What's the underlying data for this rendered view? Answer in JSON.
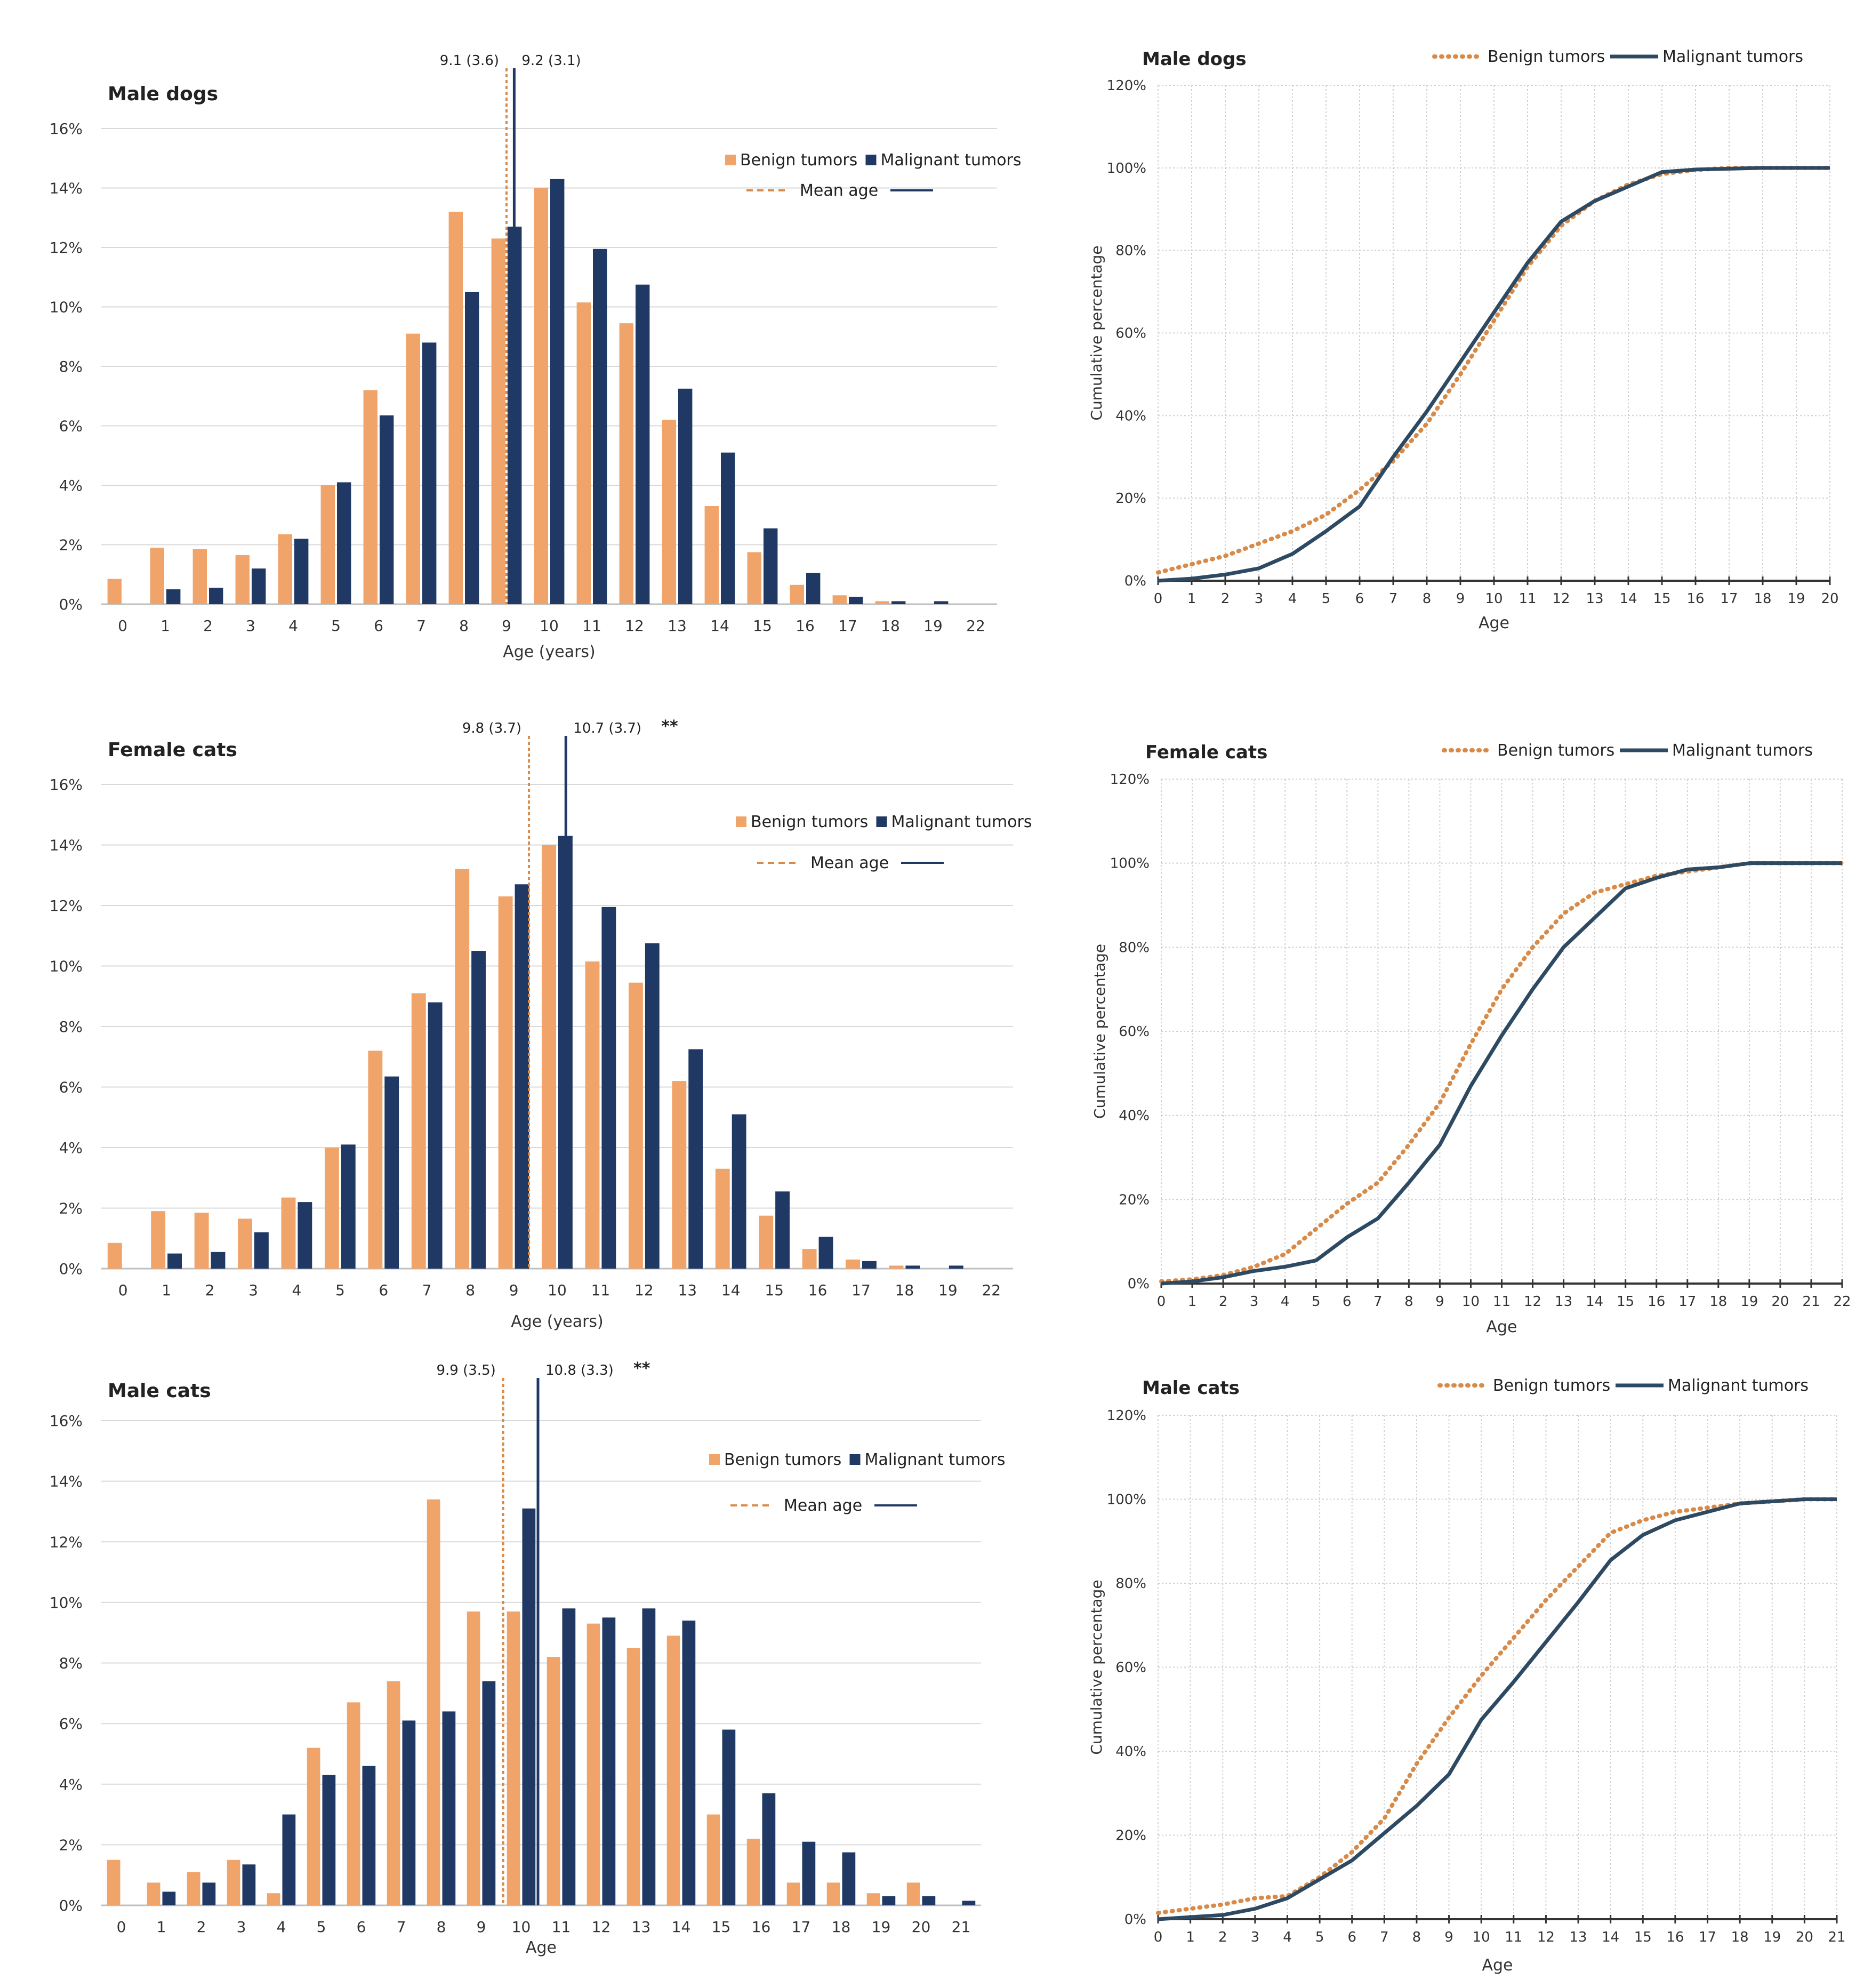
{
  "colors": {
    "benign": "#f0a46a",
    "malignant": "#1f3864",
    "benign_line": "#d88a48",
    "malignant_line": "#2e4a63",
    "grid": "#d9d9d9"
  },
  "chart_data": [
    {
      "type": "bar",
      "title": "Male dogs",
      "xlabel": "Age (years)",
      "ylabel": "",
      "ylim": [
        0,
        16
      ],
      "yticks": [
        "0%",
        "2%",
        "4%",
        "6%",
        "8%",
        "10%",
        "12%",
        "14%",
        "16%"
      ],
      "categories": [
        "0",
        "1",
        "2",
        "3",
        "4",
        "5",
        "6",
        "7",
        "8",
        "9",
        "10",
        "11",
        "12",
        "13",
        "14",
        "15",
        "16",
        "17",
        "18",
        "19",
        "22"
      ],
      "series": [
        {
          "name": "Benign tumors",
          "values": [
            0.85,
            1.9,
            1.85,
            1.65,
            2.35,
            4.0,
            7.2,
            9.1,
            13.2,
            12.3,
            14.0,
            10.15,
            9.45,
            6.2,
            3.3,
            1.75,
            0.65,
            0.3,
            0.1,
            0,
            0
          ]
        },
        {
          "name": "Malignant tumors",
          "values": [
            0,
            0.5,
            0.55,
            1.2,
            2.2,
            4.1,
            6.35,
            8.8,
            10.5,
            12.7,
            14.3,
            11.95,
            10.75,
            7.25,
            5.1,
            2.55,
            1.05,
            0.25,
            0.1,
            0.1,
            0
          ]
        }
      ],
      "legend": {
        "benign": "Benign tumors",
        "malignant": "Malignant tumors",
        "mean": "Mean age",
        "position": "top-right"
      },
      "mean_benign": {
        "label": "9.1 (3.6)",
        "x": 9.0
      },
      "mean_malignant": {
        "label": "9.2 (3.1)",
        "x": 9.18
      }
    },
    {
      "type": "line",
      "title": "Male dogs",
      "xlabel": "Age",
      "ylabel": "Cumulative percentage",
      "ylim": [
        0,
        120
      ],
      "yticks": [
        "0%",
        "20%",
        "40%",
        "60%",
        "80%",
        "100%",
        "120%"
      ],
      "x": [
        0,
        1,
        2,
        3,
        4,
        5,
        6,
        7,
        8,
        9,
        10,
        11,
        12,
        13,
        14,
        15,
        16,
        17,
        18,
        19,
        20
      ],
      "series": [
        {
          "name": "Benign tumors",
          "values": [
            2,
            4,
            6,
            9,
            12,
            16,
            22,
            29,
            38,
            50,
            63,
            76,
            86,
            92,
            96,
            98.5,
            99.5,
            100,
            100,
            100,
            100
          ]
        },
        {
          "name": "Malignant tumors",
          "values": [
            0,
            0.5,
            1.5,
            3,
            6.5,
            12,
            18,
            30,
            41,
            53,
            65,
            77,
            87,
            92,
            95.5,
            99,
            99.6,
            99.8,
            100,
            100,
            100
          ]
        }
      ],
      "legend": {
        "benign": "Benign tumors",
        "malignant": "Malignant tumors",
        "position": "top"
      }
    },
    {
      "type": "bar",
      "title": "Female cats",
      "xlabel": "Age (years)",
      "ylabel": "",
      "ylim": [
        0,
        16
      ],
      "yticks": [
        "0%",
        "2%",
        "4%",
        "6%",
        "8%",
        "10%",
        "12%",
        "14%",
        "16%"
      ],
      "categories": [
        "0",
        "1",
        "2",
        "3",
        "4",
        "5",
        "6",
        "7",
        "8",
        "9",
        "10",
        "11",
        "12",
        "13",
        "14",
        "15",
        "16",
        "17",
        "18",
        "19",
        "22"
      ],
      "series": [
        {
          "name": "Benign tumors",
          "values": [
            0.85,
            1.9,
            1.85,
            1.65,
            2.35,
            4.0,
            7.2,
            9.1,
            13.2,
            12.3,
            14.0,
            10.15,
            9.45,
            6.2,
            3.3,
            1.75,
            0.65,
            0.3,
            0.1,
            0,
            0
          ]
        },
        {
          "name": "Malignant tumors",
          "values": [
            0,
            0.5,
            0.55,
            1.2,
            2.2,
            4.1,
            6.35,
            8.8,
            10.5,
            12.7,
            14.3,
            11.95,
            10.75,
            7.25,
            5.1,
            2.55,
            1.05,
            0.25,
            0.1,
            0.1,
            0
          ]
        }
      ],
      "legend": {
        "benign": "Benign tumors",
        "malignant": "Malignant tumors",
        "mean": "Mean age",
        "position": "top-right"
      },
      "mean_benign": {
        "label": "9.8 (3.7)",
        "x": 9.35
      },
      "mean_malignant": {
        "label": "10.7 (3.7)",
        "x": 10.2,
        "sig": "**"
      }
    },
    {
      "type": "line",
      "title": "Female cats",
      "xlabel": "Age",
      "ylabel": "Cumulative percentage",
      "ylim": [
        0,
        120
      ],
      "yticks": [
        "0%",
        "20%",
        "40%",
        "60%",
        "80%",
        "100%",
        "120%"
      ],
      "x": [
        0,
        1,
        2,
        3,
        4,
        5,
        6,
        7,
        8,
        9,
        10,
        11,
        12,
        13,
        14,
        15,
        16,
        17,
        18,
        19,
        20,
        21,
        22
      ],
      "series": [
        {
          "name": "Benign tumors",
          "values": [
            0.5,
            1,
            2,
            4,
            7,
            13,
            19,
            24,
            33,
            43,
            57,
            70,
            80,
            88,
            93,
            95,
            97,
            98,
            99,
            100,
            100,
            100,
            100
          ]
        },
        {
          "name": "Malignant tumors",
          "values": [
            0,
            0.5,
            1.5,
            3,
            4,
            5.5,
            11,
            15.5,
            24,
            33,
            47,
            59,
            70,
            80,
            87,
            94,
            96.5,
            98.5,
            99,
            100,
            100,
            100,
            100
          ]
        }
      ],
      "legend": {
        "benign": "Benign tumors",
        "malignant": "Malignant tumors",
        "position": "top"
      }
    },
    {
      "type": "bar",
      "title": "Male cats",
      "xlabel": "Age",
      "ylabel": "",
      "ylim": [
        0,
        16
      ],
      "yticks": [
        "0%",
        "2%",
        "4%",
        "6%",
        "8%",
        "10%",
        "12%",
        "14%",
        "16%"
      ],
      "categories": [
        "0",
        "1",
        "2",
        "3",
        "4",
        "5",
        "6",
        "7",
        "8",
        "9",
        "10",
        "11",
        "12",
        "13",
        "14",
        "15",
        "16",
        "17",
        "18",
        "19",
        "20",
        "21"
      ],
      "series": [
        {
          "name": "Benign tumors",
          "values": [
            1.5,
            0.75,
            1.1,
            1.5,
            0.4,
            5.2,
            6.7,
            7.4,
            13.4,
            9.7,
            9.7,
            8.2,
            9.3,
            8.5,
            8.9,
            3.0,
            2.2,
            0.75,
            0.75,
            0.4,
            0.75,
            0
          ]
        },
        {
          "name": "Malignant tumors",
          "values": [
            0,
            0.45,
            0.75,
            1.35,
            3.0,
            4.3,
            4.6,
            6.1,
            6.4,
            7.4,
            13.1,
            9.8,
            9.5,
            9.8,
            9.4,
            5.8,
            3.7,
            2.1,
            1.75,
            0.3,
            0.3,
            0.15
          ]
        }
      ],
      "legend": {
        "benign": "Benign tumors",
        "malignant": "Malignant tumors",
        "mean": "Mean age",
        "position": "top-right"
      },
      "mean_benign": {
        "label": "9.9 (3.5)",
        "x": 9.55
      },
      "mean_malignant": {
        "label": "10.8 (3.3)",
        "x": 10.42,
        "sig": "**"
      }
    },
    {
      "type": "line",
      "title": "Male cats",
      "xlabel": "Age",
      "ylabel": "Cumulative percentage",
      "ylim": [
        0,
        120
      ],
      "yticks": [
        "0%",
        "20%",
        "40%",
        "60%",
        "80%",
        "100%",
        "120%"
      ],
      "x": [
        0,
        1,
        2,
        3,
        4,
        5,
        6,
        7,
        8,
        9,
        10,
        11,
        12,
        13,
        14,
        15,
        16,
        17,
        18,
        19,
        20,
        21
      ],
      "series": [
        {
          "name": "Benign tumors",
          "values": [
            1.5,
            2.5,
            3.5,
            5,
            5.5,
            10,
            16,
            24,
            37,
            48,
            58,
            67,
            76,
            84,
            92,
            95,
            97,
            98,
            99,
            99.5,
            100,
            100
          ]
        },
        {
          "name": "Malignant tumors",
          "values": [
            0,
            0.5,
            1,
            2.5,
            5,
            9.5,
            14,
            20.5,
            27,
            34.5,
            47.5,
            56.5,
            66,
            75.5,
            85.5,
            91.5,
            95,
            97,
            99,
            99.5,
            100,
            100
          ]
        }
      ],
      "legend": {
        "benign": "Benign tumors",
        "malignant": "Malignant tumors",
        "position": "top"
      }
    }
  ]
}
